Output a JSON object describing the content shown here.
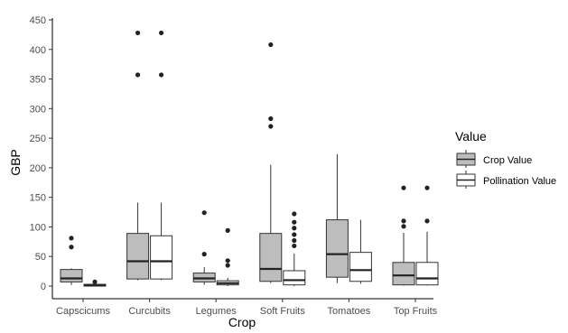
{
  "chart_data": {
    "type": "box",
    "xlabel": "Crop",
    "ylabel": "GBP",
    "ylim": [
      0,
      450
    ],
    "yticks": [
      0,
      50,
      100,
      150,
      200,
      250,
      300,
      350,
      400,
      450
    ],
    "grid": false,
    "legend_placement": "right",
    "legend_title": "Value",
    "categories": [
      "Capscicums",
      "Curcubits",
      "Legumes",
      "Soft Fruits",
      "Tomatoes",
      "Top Fruits"
    ],
    "series": [
      {
        "name": "Crop Value",
        "fill": "#bdbdbd",
        "boxes": [
          {
            "min": 2,
            "q1": 7,
            "median": 13,
            "q3": 28,
            "max": 30,
            "outliers": [
              66,
              81
            ]
          },
          {
            "min": 10,
            "q1": 12,
            "median": 42,
            "q3": 89,
            "max": 141,
            "outliers": [
              357,
              428
            ]
          },
          {
            "min": 2,
            "q1": 7,
            "median": 13,
            "q3": 22,
            "max": 32,
            "outliers": [
              54,
              124
            ]
          },
          {
            "min": 5,
            "q1": 8,
            "median": 29,
            "q3": 89,
            "max": 205,
            "outliers": [
              270,
              283,
              408
            ]
          },
          {
            "min": 5,
            "q1": 15,
            "median": 54,
            "q3": 112,
            "max": 223,
            "outliers": []
          },
          {
            "min": 1,
            "q1": 2,
            "median": 18,
            "q3": 40,
            "max": 90,
            "outliers": [
              101,
              110,
              166
            ]
          }
        ]
      },
      {
        "name": "Pollination Value",
        "fill": "#ffffff",
        "boxes": [
          {
            "min": 0,
            "q1": 0,
            "median": 1,
            "q3": 3,
            "max": 4,
            "outliers": [
              7
            ]
          },
          {
            "min": 10,
            "q1": 12,
            "median": 42,
            "q3": 85,
            "max": 141,
            "outliers": [
              357,
              428
            ]
          },
          {
            "min": 0,
            "q1": 2,
            "median": 5,
            "q3": 9,
            "max": 14,
            "outliers": [
              35,
              43,
              94
            ]
          },
          {
            "min": 0,
            "q1": 2,
            "median": 10,
            "q3": 26,
            "max": 55,
            "outliers": [
              68,
              77,
              87,
              98,
              108,
              122
            ]
          },
          {
            "min": 4,
            "q1": 8,
            "median": 27,
            "q3": 57,
            "max": 112,
            "outliers": []
          },
          {
            "min": 1,
            "q1": 2,
            "median": 13,
            "q3": 40,
            "max": 92,
            "outliers": [
              110,
              166
            ]
          }
        ]
      }
    ]
  }
}
